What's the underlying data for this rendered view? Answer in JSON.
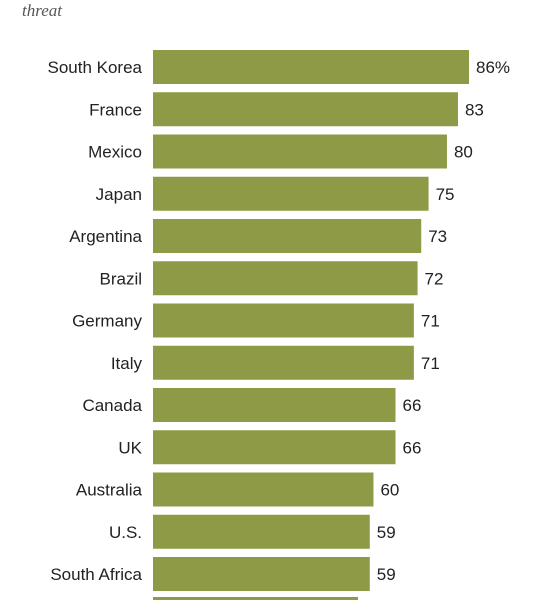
{
  "subtitle": "threat",
  "colors": {
    "bar": "#8f9a47",
    "text": "#222222",
    "subtitle": "#555555"
  },
  "chart_data": {
    "type": "bar",
    "orientation": "horizontal",
    "title": "",
    "subtitle": "threat",
    "xlabel": "",
    "ylabel": "",
    "xlim": [
      0,
      100
    ],
    "grid": false,
    "value_suffix_first": "%",
    "categories": [
      "South Korea",
      "France",
      "Mexico",
      "Japan",
      "Argentina",
      "Brazil",
      "Germany",
      "Italy",
      "Canada",
      "UK",
      "Australia",
      "U.S.",
      "South Africa"
    ],
    "values": [
      86,
      83,
      80,
      75,
      73,
      72,
      71,
      71,
      66,
      66,
      60,
      59,
      59
    ],
    "value_labels": [
      "86%",
      "83",
      "80",
      "75",
      "73",
      "72",
      "71",
      "71",
      "66",
      "66",
      "60",
      "59",
      "59"
    ]
  }
}
